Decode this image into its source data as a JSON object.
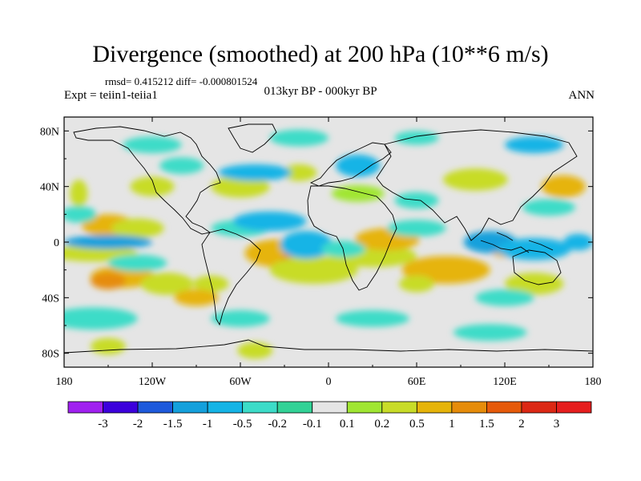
{
  "title": "Divergence (smoothed) at 200 hPa (10**6 m/s)",
  "stats_line": "rmsd= 0.415212 diff= -0.000801524",
  "expt_line": "Expt = teiin1-teiia1",
  "period_line": "013kyr BP - 000kyr BP",
  "season": "ANN",
  "map": {
    "lon_range": [
      -180,
      180
    ],
    "lat_range": [
      -90,
      90
    ],
    "x_ticks": [
      "180",
      "120W",
      "60W",
      "0",
      "60E",
      "120E",
      "180"
    ],
    "y_ticks": [
      "80N",
      "40N",
      "0",
      "40S",
      "80S"
    ],
    "background_color": "#e5e5e5"
  },
  "colorbar": {
    "labels": [
      "-3",
      "-2",
      "-1.5",
      "-1",
      "-0.5",
      "-0.2",
      "-0.1",
      "0.1",
      "0.2",
      "0.5",
      "1",
      "1.5",
      "2",
      "3"
    ],
    "colors": [
      "#a020f0",
      "#3c00dc",
      "#1e5adc",
      "#14a0dc",
      "#14b4e6",
      "#3cdcc8",
      "#32d296",
      "#e5e5e5",
      "#a0e632",
      "#c8dc28",
      "#e6b40a",
      "#e68c0a",
      "#e65a0a",
      "#dc2814",
      "#e61e1e"
    ]
  },
  "features": {
    "positive": [
      [
        -170,
        35,
        6,
        10,
        "#c8dc28"
      ],
      [
        -150,
        12,
        18,
        8,
        "#e6b40a"
      ],
      [
        -130,
        10,
        18,
        7,
        "#c8dc28"
      ],
      [
        -160,
        -8,
        30,
        6,
        "#c8dc28"
      ],
      [
        -140,
        -25,
        22,
        8,
        "#e6b40a"
      ],
      [
        -110,
        -30,
        18,
        8,
        "#c8dc28"
      ],
      [
        -150,
        -28,
        12,
        6,
        "#e68c0a"
      ],
      [
        -35,
        -8,
        22,
        10,
        "#e6b40a"
      ],
      [
        -20,
        -12,
        12,
        6,
        "#e68c0a"
      ],
      [
        -10,
        -20,
        30,
        10,
        "#c8dc28"
      ],
      [
        30,
        -10,
        30,
        8,
        "#c8dc28"
      ],
      [
        40,
        2,
        22,
        8,
        "#e6b40a"
      ],
      [
        80,
        -20,
        30,
        10,
        "#e6b40a"
      ],
      [
        140,
        -30,
        20,
        8,
        "#c8dc28"
      ],
      [
        -60,
        40,
        20,
        8,
        "#c8dc28"
      ],
      [
        -20,
        50,
        12,
        6,
        "#c8dc28"
      ],
      [
        20,
        35,
        18,
        6,
        "#a0e632"
      ],
      [
        100,
        45,
        22,
        8,
        "#c8dc28"
      ],
      [
        160,
        40,
        15,
        8,
        "#e6b40a"
      ],
      [
        -80,
        -30,
        12,
        6,
        "#c8dc28"
      ],
      [
        -150,
        -75,
        12,
        6,
        "#c8dc28"
      ],
      [
        -50,
        -78,
        12,
        6,
        "#c8dc28"
      ],
      [
        120,
        -5,
        10,
        6,
        "#e6b40a"
      ],
      [
        60,
        -30,
        12,
        6,
        "#c8dc28"
      ],
      [
        -120,
        40,
        15,
        7,
        "#c8dc28"
      ],
      [
        -90,
        -40,
        15,
        6,
        "#e6b40a"
      ]
    ],
    "negative": [
      [
        -15,
        0,
        10,
        6,
        "#1e5adc"
      ],
      [
        -15,
        -2,
        18,
        10,
        "#14b4e6"
      ],
      [
        -170,
        20,
        12,
        6,
        "#3cdcc8"
      ],
      [
        -150,
        0,
        30,
        5,
        "#14a0dc"
      ],
      [
        -130,
        -15,
        20,
        6,
        "#3cdcc8"
      ],
      [
        -60,
        10,
        20,
        6,
        "#3cdcc8"
      ],
      [
        -40,
        15,
        25,
        7,
        "#14b4e6"
      ],
      [
        10,
        -5,
        15,
        6,
        "#3cdcc8"
      ],
      [
        60,
        10,
        20,
        6,
        "#3cdcc8"
      ],
      [
        110,
        0,
        18,
        8,
        "#14a0dc"
      ],
      [
        140,
        -5,
        25,
        8,
        "#14b4e6"
      ],
      [
        150,
        25,
        18,
        6,
        "#3cdcc8"
      ],
      [
        -50,
        50,
        25,
        6,
        "#14b4e6"
      ],
      [
        -100,
        55,
        15,
        6,
        "#3cdcc8"
      ],
      [
        20,
        55,
        15,
        8,
        "#14b4e6"
      ],
      [
        60,
        30,
        15,
        6,
        "#3cdcc8"
      ],
      [
        -120,
        70,
        20,
        6,
        "#3cdcc8"
      ],
      [
        -20,
        75,
        20,
        6,
        "#3cdcc8"
      ],
      [
        60,
        75,
        15,
        5,
        "#3cdcc8"
      ],
      [
        140,
        70,
        20,
        6,
        "#14b4e6"
      ],
      [
        -160,
        -55,
        30,
        8,
        "#3cdcc8"
      ],
      [
        30,
        -55,
        25,
        6,
        "#3cdcc8"
      ],
      [
        110,
        -65,
        25,
        6,
        "#3cdcc8"
      ],
      [
        -60,
        -55,
        20,
        6,
        "#3cdcc8"
      ],
      [
        170,
        0,
        10,
        6,
        "#14b4e6"
      ],
      [
        120,
        -40,
        20,
        6,
        "#3cdcc8"
      ]
    ]
  }
}
